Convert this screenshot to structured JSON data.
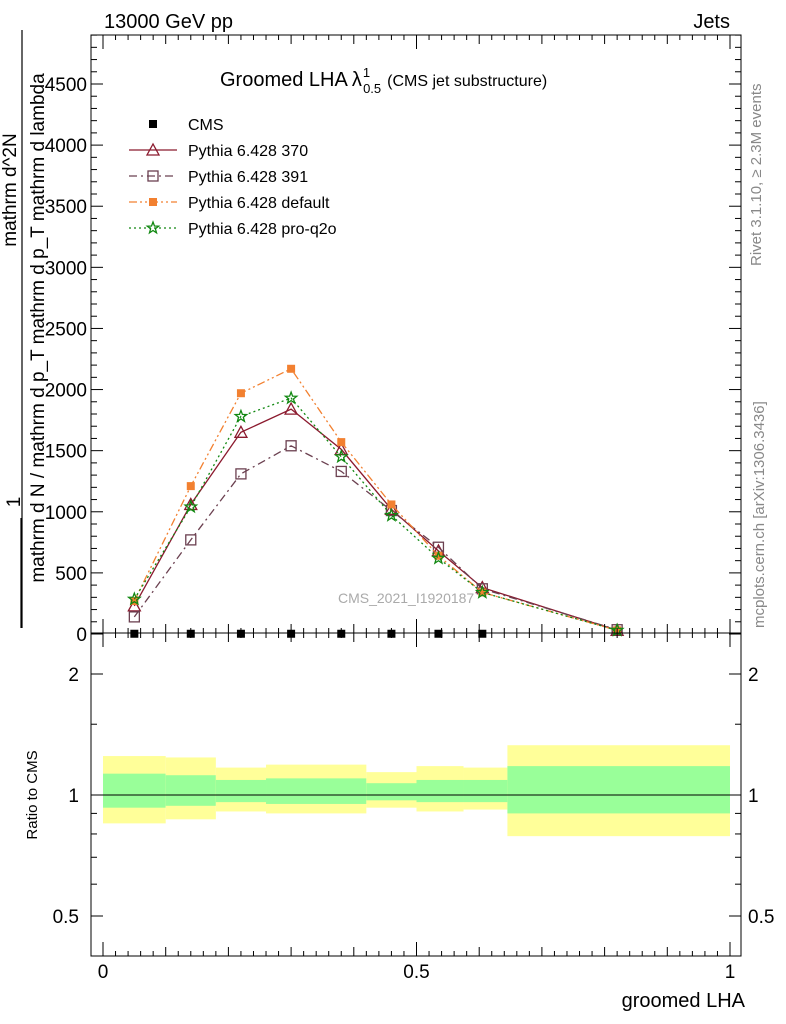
{
  "header": {
    "left": "13000 GeV pp",
    "right": "Jets"
  },
  "side_text": {
    "rivet": "Rivet 3.1.10, ≥ 2.3M events",
    "mcplots": "mcplots.cern.ch [arXiv:1306.3436]"
  },
  "chart_data": [
    {
      "type": "line",
      "title_main": "Groomed LHA",
      "title_sym": "λ",
      "title_sup": "1",
      "title_sub": "0.5",
      "title_tail": "(CMS jet substructure)",
      "watermark": "CMS_2021_I1920187",
      "ylabel_top": "1",
      "ylabel_den": "mathrm d N / mathrm d p_T mathrm d p_T mathrm d lambda",
      "ylabel_num": "mathrm d^2N",
      "ylim": [
        0,
        4900
      ],
      "yticks": [
        0,
        500,
        1000,
        1500,
        2000,
        2500,
        3000,
        3500,
        4000,
        4500
      ],
      "ytick_labels": [
        "0",
        "500",
        "1000",
        "1500",
        "2000",
        "2500",
        "3000",
        "3500",
        "4000",
        "4500"
      ],
      "xlim": [
        -0.02,
        1.0
      ],
      "grid": false,
      "legend_position": "top-left",
      "series": [
        {
          "name": "CMS",
          "color": "#000000",
          "marker": "square",
          "style": "none",
          "x": [
            0.05,
            0.14,
            0.22,
            0.3,
            0.38,
            0.46,
            0.535,
            0.605
          ],
          "y": [
            2,
            2,
            2,
            2,
            2,
            2,
            2,
            2
          ]
        },
        {
          "name": "Pythia 6.428 370",
          "color": "#8b1a2e",
          "marker": "triangle-open",
          "style": "solid",
          "x": [
            0.05,
            0.14,
            0.22,
            0.3,
            0.38,
            0.46,
            0.535,
            0.605,
            0.82
          ],
          "y": [
            230,
            1060,
            1650,
            1840,
            1510,
            1020,
            680,
            380,
            30
          ]
        },
        {
          "name": "Pythia 6.428 391",
          "color": "#6b4050",
          "marker": "square-open",
          "style": "dashdot",
          "x": [
            0.05,
            0.14,
            0.22,
            0.3,
            0.38,
            0.46,
            0.535,
            0.605,
            0.82
          ],
          "y": [
            140,
            770,
            1310,
            1540,
            1330,
            1010,
            710,
            370,
            35
          ]
        },
        {
          "name": "Pythia 6.428 default",
          "color": "#f28030",
          "marker": "square",
          "style": "dashdotdot",
          "x": [
            0.05,
            0.14,
            0.22,
            0.3,
            0.38,
            0.46,
            0.535,
            0.605,
            0.82
          ],
          "y": [
            270,
            1210,
            1970,
            2170,
            1570,
            1060,
            640,
            340,
            30
          ]
        },
        {
          "name": "Pythia 6.428 pro-q2o",
          "color": "#118811",
          "marker": "star",
          "style": "dotted",
          "x": [
            0.05,
            0.14,
            0.22,
            0.3,
            0.38,
            0.46,
            0.535,
            0.605,
            0.82
          ],
          "y": [
            285,
            1040,
            1780,
            1930,
            1450,
            970,
            620,
            340,
            30
          ]
        }
      ]
    },
    {
      "type": "area",
      "ylabel": "Ratio to CMS",
      "xlabel": "groomed LHA",
      "ylim": [
        0.4,
        2.25
      ],
      "xlim": [
        -0.02,
        1.0
      ],
      "yticks": [
        0.5,
        1,
        2
      ],
      "ytick_labels": [
        "0.5",
        "1",
        "2"
      ],
      "xticks": [
        0,
        0.5,
        1
      ],
      "xtick_labels": [
        "0",
        "0.5",
        "1"
      ],
      "reference_line": 1,
      "bins": [
        {
          "x0": 0.0,
          "x1": 0.1,
          "stat_lo": 0.93,
          "stat_hi": 1.13,
          "tot_lo": 0.85,
          "tot_hi": 1.25
        },
        {
          "x0": 0.1,
          "x1": 0.18,
          "stat_lo": 0.94,
          "stat_hi": 1.12,
          "tot_lo": 0.87,
          "tot_hi": 1.24
        },
        {
          "x0": 0.18,
          "x1": 0.26,
          "stat_lo": 0.96,
          "stat_hi": 1.09,
          "tot_lo": 0.91,
          "tot_hi": 1.17
        },
        {
          "x0": 0.26,
          "x1": 0.42,
          "stat_lo": 0.95,
          "stat_hi": 1.1,
          "tot_lo": 0.9,
          "tot_hi": 1.19
        },
        {
          "x0": 0.42,
          "x1": 0.5,
          "stat_lo": 0.97,
          "stat_hi": 1.07,
          "tot_lo": 0.93,
          "tot_hi": 1.14
        },
        {
          "x0": 0.5,
          "x1": 0.575,
          "stat_lo": 0.96,
          "stat_hi": 1.09,
          "tot_lo": 0.91,
          "tot_hi": 1.18
        },
        {
          "x0": 0.575,
          "x1": 0.645,
          "stat_lo": 0.96,
          "stat_hi": 1.09,
          "tot_lo": 0.92,
          "tot_hi": 1.17
        },
        {
          "x0": 0.645,
          "x1": 1.0,
          "stat_lo": 0.9,
          "stat_hi": 1.18,
          "tot_lo": 0.79,
          "tot_hi": 1.33
        }
      ],
      "colors": {
        "stat_band": "#99ff99",
        "total_band": "#ffff99"
      }
    }
  ]
}
